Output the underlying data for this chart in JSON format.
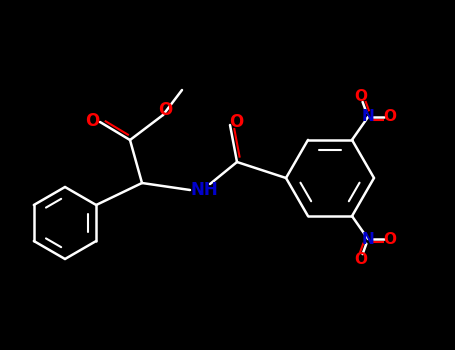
{
  "bg": "#000000",
  "W": "#ffffff",
  "O": "#ff0000",
  "N": "#0000cc",
  "lw": 1.8,
  "lw_inner": 1.5,
  "fs": 12,
  "fs_small": 11
}
